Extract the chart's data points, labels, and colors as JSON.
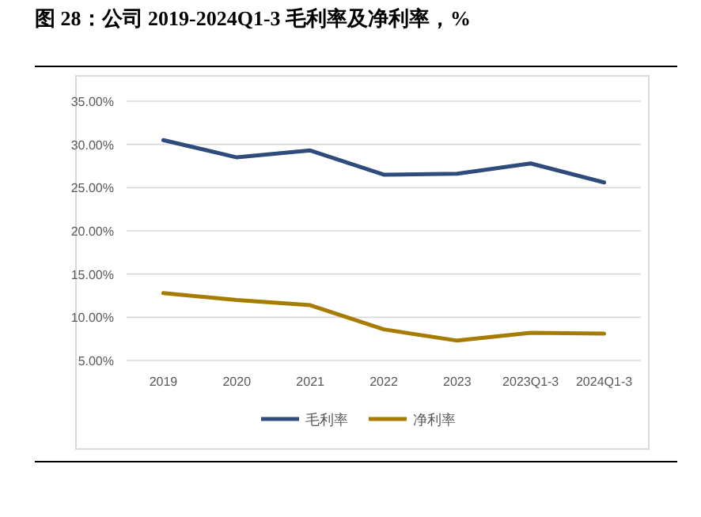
{
  "chart_data": {
    "type": "line",
    "title": "图 28：公司 2019-2024Q1-3 毛利率及净利率，%",
    "categories": [
      "2019",
      "2020",
      "2021",
      "2022",
      "2023",
      "2023Q1-3",
      "2024Q1-3"
    ],
    "series": [
      {
        "name": "毛利率",
        "color": "#2f4b7c",
        "values": [
          30.5,
          28.5,
          29.3,
          26.5,
          26.6,
          27.8,
          25.6
        ]
      },
      {
        "name": "净利率",
        "color": "#a67c00",
        "values": [
          12.8,
          12.0,
          11.4,
          8.6,
          7.3,
          8.2,
          8.1
        ]
      }
    ],
    "ylim": [
      5,
      35
    ],
    "yticks": [
      {
        "value": 5,
        "label": "5.00%"
      },
      {
        "value": 10,
        "label": "10.00%"
      },
      {
        "value": 15,
        "label": "15.00%"
      },
      {
        "value": 20,
        "label": "20.00%"
      },
      {
        "value": 25,
        "label": "25.00%"
      },
      {
        "value": 30,
        "label": "30.00%"
      },
      {
        "value": 35,
        "label": "35.00%"
      }
    ],
    "grid": "y",
    "legend": "bottom",
    "marker": "none",
    "line_style": "solid"
  }
}
